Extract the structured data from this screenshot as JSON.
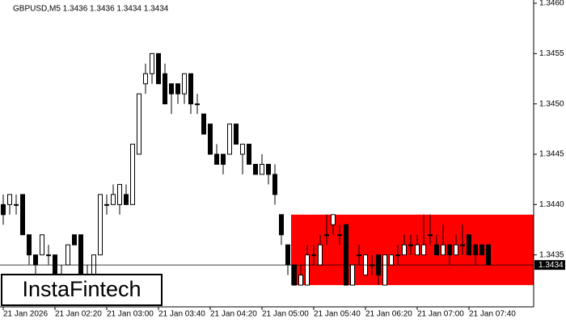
{
  "chart_data": {
    "type": "candlestick",
    "title": "GBPUSD,M5  1.3436 1.3436 1.3434 1.3434",
    "watermark": "InstaFintech",
    "categories": [
      "21 Jan 2026",
      null,
      null,
      null,
      null,
      null,
      null,
      null,
      "21 Jan 02:20",
      null,
      null,
      null,
      null,
      null,
      null,
      null,
      "21 Jan 03:00",
      null,
      null,
      null,
      null,
      null,
      null,
      null,
      "21 Jan 03:40",
      null,
      null,
      null,
      null,
      null,
      null,
      null,
      "21 Jan 04:20",
      null,
      null,
      null,
      null,
      null,
      null,
      null,
      "21 Jan 05:00",
      null,
      null,
      null,
      null,
      null,
      null,
      null,
      "21 Jan 05:40",
      null,
      null,
      null,
      null,
      null,
      null,
      null,
      "21 Jan 06:20",
      null,
      null,
      null,
      null,
      null,
      null,
      null,
      "21 Jan 07:00",
      null,
      null,
      null,
      null,
      null,
      null,
      null,
      "21 Jan 07:40",
      null,
      null,
      null
    ],
    "open": [
      1.344,
      1.344,
      1.344,
      1.3441,
      1.3437,
      1.3435,
      1.3435,
      1.3435,
      1.3435,
      1.3433,
      1.3434,
      1.3437,
      1.3437,
      1.3433,
      1.3433,
      1.3435,
      1.344,
      1.344,
      1.344,
      1.3441,
      1.344,
      1.3445,
      1.3452,
      1.3453,
      1.3455,
      1.3453,
      1.3452,
      1.3452,
      1.3451,
      1.3453,
      1.345,
      1.3449,
      1.3448,
      1.3445,
      1.3445,
      1.3445,
      1.3448,
      1.3445,
      1.3446,
      1.3444,
      1.3443,
      1.3444,
      1.3443,
      1.3439,
      1.3436,
      1.3434,
      1.3432,
      1.3432,
      1.3435,
      1.3434,
      1.3437,
      1.3438,
      1.3437,
      1.3438,
      1.3432,
      1.3435,
      1.3433,
      1.3434,
      1.3435,
      1.3432,
      1.3434,
      1.3435,
      1.3435,
      1.3436,
      1.3435,
      1.3435,
      1.3437,
      1.3436,
      1.3435,
      1.3436,
      1.3435,
      1.3436,
      1.3437,
      1.3436,
      1.3436,
      1.3436
    ],
    "high": [
      1.3441,
      1.3441,
      1.3441,
      1.3441,
      1.3437,
      1.3435,
      1.3437,
      1.3436,
      1.3435,
      1.3434,
      1.3436,
      1.3437,
      1.3437,
      1.3434,
      1.3435,
      1.3441,
      1.3441,
      1.3442,
      1.3442,
      1.3442,
      1.3446,
      1.3451,
      1.3454,
      1.3455,
      1.3455,
      1.3454,
      1.3452,
      1.3452,
      1.3453,
      1.3453,
      1.3451,
      1.3449,
      1.3448,
      1.3446,
      1.3445,
      1.3448,
      1.3448,
      1.3446,
      1.3446,
      1.3444,
      1.3445,
      1.3444,
      1.3444,
      1.3439,
      1.3436,
      1.3434,
      1.3434,
      1.3436,
      1.3436,
      1.3437,
      1.3439,
      1.3439,
      1.3438,
      1.3438,
      1.3434,
      1.3436,
      1.3435,
      1.3435,
      1.3435,
      1.3435,
      1.3435,
      1.3436,
      1.3437,
      1.3437,
      1.3437,
      1.3439,
      1.3439,
      1.3437,
      1.3438,
      1.3436,
      1.3437,
      1.3438,
      1.3437,
      1.3436,
      1.3436,
      1.3436
    ],
    "low": [
      1.3438,
      1.3439,
      1.3439,
      1.3437,
      1.3434,
      1.3433,
      1.3435,
      1.3434,
      1.3432,
      1.3432,
      1.3434,
      1.3436,
      1.3432,
      1.3432,
      1.3432,
      1.3435,
      1.3439,
      1.344,
      1.3439,
      1.344,
      1.344,
      1.3445,
      1.3451,
      1.3452,
      1.3452,
      1.345,
      1.3449,
      1.345,
      1.345,
      1.3449,
      1.3449,
      1.3447,
      1.3445,
      1.3444,
      1.3443,
      1.3445,
      1.3446,
      1.3443,
      1.3444,
      1.3443,
      1.3443,
      1.3442,
      1.344,
      1.3436,
      1.3433,
      1.3432,
      1.3432,
      1.3432,
      1.3434,
      1.3434,
      1.3436,
      1.3437,
      1.3436,
      1.3432,
      1.3432,
      1.3434,
      1.3433,
      1.3433,
      1.3432,
      1.3432,
      1.3434,
      1.3434,
      1.3435,
      1.3435,
      1.3435,
      1.3435,
      1.3436,
      1.3435,
      1.3435,
      1.3434,
      1.3435,
      1.3435,
      1.3435,
      1.3434,
      1.3435,
      1.3434
    ],
    "close": [
      1.3439,
      1.3441,
      1.344,
      1.3437,
      1.3435,
      1.3434,
      1.3437,
      1.3435,
      1.3433,
      1.3433,
      1.3436,
      1.3436,
      1.3433,
      1.3433,
      1.3435,
      1.3441,
      1.344,
      1.3441,
      1.3442,
      1.344,
      1.3446,
      1.3451,
      1.3453,
      1.3455,
      1.3452,
      1.345,
      1.3451,
      1.3451,
      1.3453,
      1.345,
      1.345,
      1.3447,
      1.3445,
      1.3444,
      1.3444,
      1.3448,
      1.3446,
      1.3446,
      1.3444,
      1.3443,
      1.3444,
      1.3443,
      1.3441,
      1.3437,
      1.3434,
      1.3432,
      1.3433,
      1.3435,
      1.3435,
      1.3436,
      1.3437,
      1.3439,
      1.3437,
      1.3432,
      1.3434,
      1.3435,
      1.3435,
      1.3434,
      1.3433,
      1.3435,
      1.3435,
      1.3435,
      1.3436,
      1.3436,
      1.3436,
      1.3436,
      1.3437,
      1.3435,
      1.3436,
      1.3435,
      1.3436,
      1.3436,
      1.3435,
      1.3435,
      1.3435,
      1.3434
    ],
    "up_color": "#ffffff",
    "down_color": "#000000",
    "ylim": [
      1.343,
      1.346
    ],
    "yticks": [
      1.3435,
      {
        "value": 1.344,
        "label": "1.3440"
      },
      1.3445,
      {
        "value": 1.345,
        "label": "1.3450"
      },
      1.3455,
      {
        "value": 1.346,
        "label": "1.3460"
      }
    ],
    "last_price": 1.3434,
    "zone": {
      "start_index": 45,
      "high": 1.3439,
      "low": 1.3432,
      "color": "#ff0000"
    }
  }
}
